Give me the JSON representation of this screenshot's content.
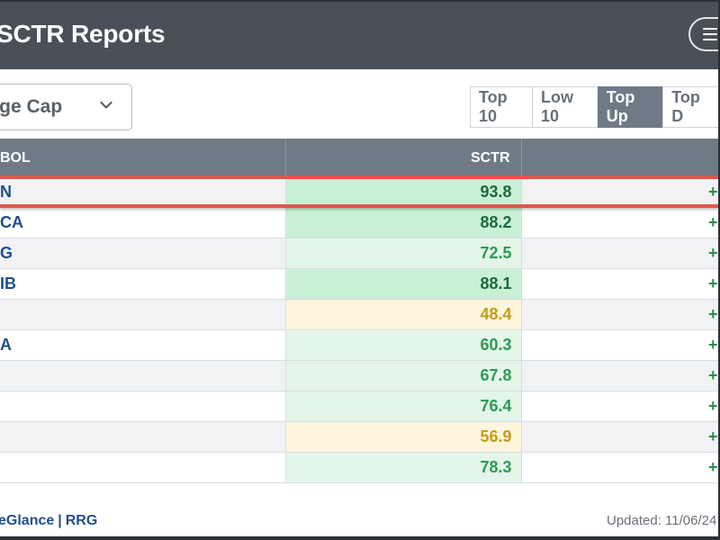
{
  "header": {
    "title": "SCTR Reports",
    "menu_icon": "hamburger-menu-icon"
  },
  "filter": {
    "selected": "rge Cap",
    "chevron_icon": "chevron-down-icon"
  },
  "tabs": [
    {
      "label": "Top 10",
      "active": false
    },
    {
      "label": "Low 10",
      "active": false
    },
    {
      "label": "Top Up",
      "active": true
    },
    {
      "label": "Top D",
      "active": false
    }
  ],
  "table": {
    "columns": {
      "symbol": "BOL",
      "sctr": "SCTR",
      "change": ""
    },
    "rows": [
      {
        "symbol": "N",
        "sctr": "93.8",
        "change": "+",
        "level": "high",
        "shaded": true,
        "highlighted": true
      },
      {
        "symbol": "CA",
        "sctr": "88.2",
        "change": "+",
        "level": "high",
        "shaded": false,
        "highlighted": false
      },
      {
        "symbol": "G",
        "sctr": "72.5",
        "change": "+",
        "level": "mid",
        "shaded": true,
        "highlighted": false
      },
      {
        "symbol": "IB",
        "sctr": "88.1",
        "change": "+",
        "level": "high",
        "shaded": false,
        "highlighted": false
      },
      {
        "symbol": "",
        "sctr": "48.4",
        "change": "+",
        "level": "low",
        "shaded": true,
        "highlighted": false
      },
      {
        "symbol": "A",
        "sctr": "60.3",
        "change": "+",
        "level": "mid",
        "shaded": false,
        "highlighted": false
      },
      {
        "symbol": "",
        "sctr": "67.8",
        "change": "+",
        "level": "mid",
        "shaded": true,
        "highlighted": false
      },
      {
        "symbol": "",
        "sctr": "76.4",
        "change": "+",
        "level": "mid",
        "shaded": false,
        "highlighted": false
      },
      {
        "symbol": "",
        "sctr": "56.9",
        "change": "+",
        "level": "low",
        "shaded": true,
        "highlighted": false
      },
      {
        "symbol": "",
        "sctr": "78.3",
        "change": "+",
        "level": "mid",
        "shaded": false,
        "highlighted": false
      }
    ]
  },
  "footer": {
    "link1": "eGlance",
    "separator": "|",
    "link2": "RRG",
    "updated": "Updated: 11/06/24"
  },
  "colors": {
    "header_bg": "#4a5058",
    "table_header_bg": "#6f7a86",
    "highlight_border": "#e3554c",
    "link": "#1f4f8a"
  }
}
